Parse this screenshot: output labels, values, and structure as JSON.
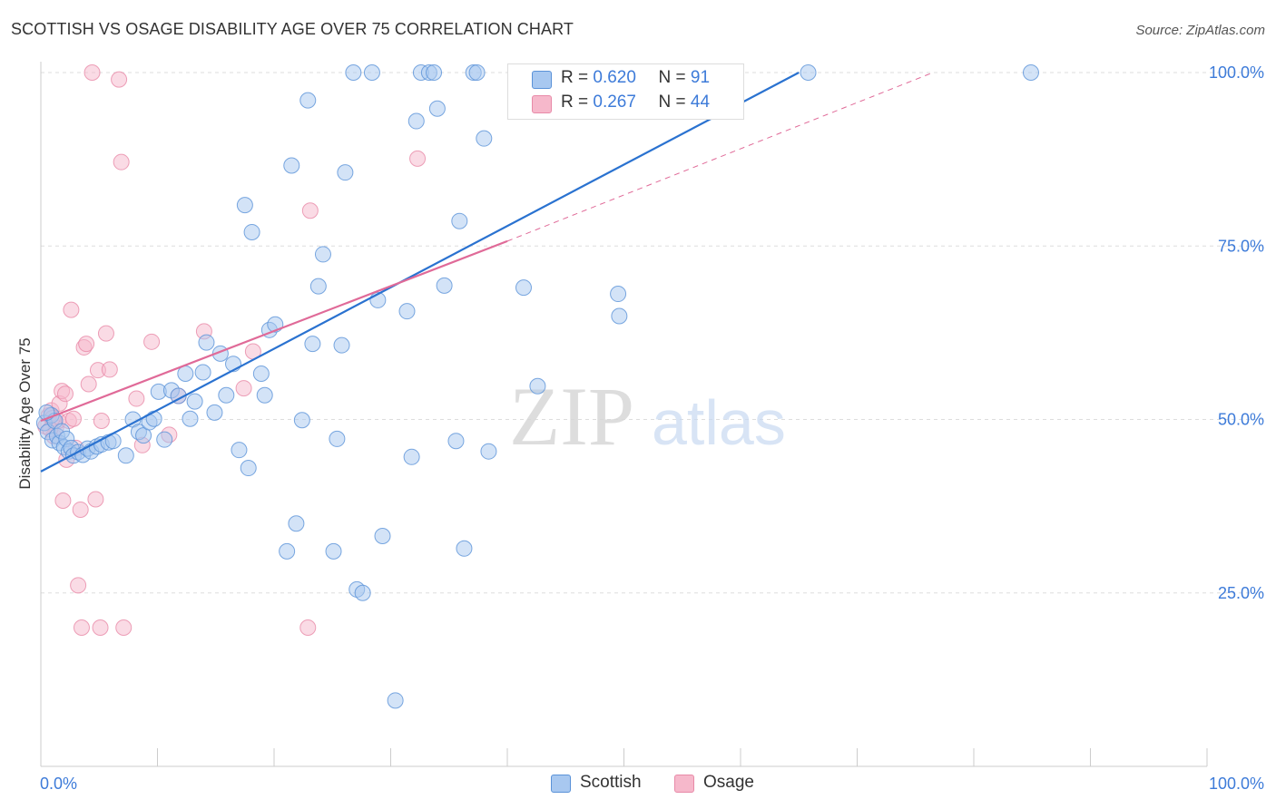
{
  "header": {
    "title": "SCOTTISH VS OSAGE DISABILITY AGE OVER 75 CORRELATION CHART",
    "source": "Source: ZipAtlas.com"
  },
  "watermark": {
    "zip": "ZIP",
    "atlas": "atlas"
  },
  "legend": {
    "scottish": {
      "r_label": "R =",
      "r_value": "0.620",
      "n_label": "N =",
      "n_value": "91"
    },
    "osage": {
      "r_label": "R =",
      "r_value": "0.267",
      "n_label": "N =",
      "n_value": "44"
    }
  },
  "bottom_legend": {
    "scottish": "Scottish",
    "osage": "Osage"
  },
  "colors": {
    "scottish_fill": "#a8c8f0",
    "scottish_stroke": "#5a92d8",
    "scottish_line": "#2a72d0",
    "osage_fill": "#f6b8cb",
    "osage_stroke": "#e88aa8",
    "osage_line": "#e06a98",
    "tick_label": "#3d7bd9",
    "grid": "#dddddd"
  },
  "chart_data": {
    "type": "scatter",
    "title": "SCOTTISH VS OSAGE DISABILITY AGE OVER 75 CORRELATION CHART",
    "xlabel": "",
    "ylabel": "Disability Age Over 75",
    "xlim": [
      0,
      100
    ],
    "ylim": [
      0,
      103
    ],
    "x_tick_labels": [
      {
        "value": 0,
        "label": "0.0%"
      },
      {
        "value": 100,
        "label": "100.0%"
      }
    ],
    "y_tick_labels": [
      {
        "value": 25,
        "label": "25.0%"
      },
      {
        "value": 50,
        "label": "50.0%"
      },
      {
        "value": 75,
        "label": "75.0%"
      },
      {
        "value": 100,
        "label": "100.0%"
      }
    ],
    "grid": true,
    "legend_position": "top-center",
    "series": [
      {
        "name": "Scottish",
        "points": [
          [
            0.3,
            49.5
          ],
          [
            0.6,
            48.2
          ],
          [
            0.9,
            50.6
          ],
          [
            1.0,
            47.0
          ],
          [
            1.2,
            49.8
          ],
          [
            1.4,
            47.6
          ],
          [
            1.6,
            46.6
          ],
          [
            1.8,
            48.3
          ],
          [
            2.0,
            46.0
          ],
          [
            2.2,
            47.2
          ],
          [
            2.4,
            45.4
          ],
          [
            2.6,
            45.9
          ],
          [
            2.8,
            44.8
          ],
          [
            3.2,
            45.3
          ],
          [
            3.6,
            44.9
          ],
          [
            4.0,
            45.8
          ],
          [
            4.3,
            45.4
          ],
          [
            4.8,
            46.1
          ],
          [
            5.2,
            46.4
          ],
          [
            5.8,
            46.7
          ],
          [
            6.2,
            46.9
          ],
          [
            7.3,
            44.8
          ],
          [
            7.9,
            50.0
          ],
          [
            8.4,
            48.2
          ],
          [
            8.8,
            47.7
          ],
          [
            9.3,
            49.6
          ],
          [
            9.7,
            50.1
          ],
          [
            10.1,
            54.0
          ],
          [
            10.6,
            47.1
          ],
          [
            11.2,
            54.2
          ],
          [
            11.8,
            53.4
          ],
          [
            12.4,
            56.6
          ],
          [
            12.8,
            50.1
          ],
          [
            13.2,
            52.6
          ],
          [
            13.9,
            56.8
          ],
          [
            14.2,
            61.1
          ],
          [
            14.9,
            51.0
          ],
          [
            15.4,
            59.5
          ],
          [
            15.9,
            53.5
          ],
          [
            16.5,
            58.0
          ],
          [
            17.0,
            45.6
          ],
          [
            17.5,
            80.9
          ],
          [
            17.8,
            43.0
          ],
          [
            18.1,
            77.0
          ],
          [
            18.9,
            56.6
          ],
          [
            19.2,
            53.5
          ],
          [
            19.6,
            62.9
          ],
          [
            20.1,
            63.7
          ],
          [
            21.1,
            31.0
          ],
          [
            21.5,
            86.6
          ],
          [
            21.9,
            35.0
          ],
          [
            22.4,
            49.9
          ],
          [
            22.9,
            96.0
          ],
          [
            23.3,
            60.9
          ],
          [
            23.8,
            69.2
          ],
          [
            24.2,
            73.8
          ],
          [
            25.1,
            31.0
          ],
          [
            25.4,
            47.2
          ],
          [
            25.8,
            60.7
          ],
          [
            26.1,
            85.6
          ],
          [
            26.8,
            100.0
          ],
          [
            27.1,
            25.5
          ],
          [
            27.6,
            25.0
          ],
          [
            28.4,
            100.0
          ],
          [
            28.9,
            67.2
          ],
          [
            29.3,
            33.2
          ],
          [
            30.4,
            9.5
          ],
          [
            31.4,
            65.6
          ],
          [
            31.8,
            44.6
          ],
          [
            32.2,
            93.0
          ],
          [
            32.6,
            100.0
          ],
          [
            33.3,
            100.0
          ],
          [
            33.7,
            100.0
          ],
          [
            34.0,
            94.8
          ],
          [
            34.6,
            69.3
          ],
          [
            35.6,
            46.9
          ],
          [
            35.9,
            78.6
          ],
          [
            36.3,
            31.4
          ],
          [
            37.1,
            100.0
          ],
          [
            37.4,
            100.0
          ],
          [
            38.0,
            90.5
          ],
          [
            38.4,
            45.4
          ],
          [
            41.4,
            69.0
          ],
          [
            42.6,
            54.8
          ],
          [
            46.8,
            100.0
          ],
          [
            49.5,
            68.1
          ],
          [
            49.6,
            64.9
          ],
          [
            59.6,
            100.0
          ],
          [
            65.8,
            100.0
          ],
          [
            84.9,
            100.0
          ],
          [
            0.5,
            51.0
          ]
        ]
      },
      {
        "name": "Osage",
        "points": [
          [
            0.4,
            49.0
          ],
          [
            0.7,
            50.6
          ],
          [
            0.9,
            51.3
          ],
          [
            1.1,
            47.6
          ],
          [
            1.3,
            48.8
          ],
          [
            1.5,
            49.8
          ],
          [
            1.6,
            52.3
          ],
          [
            1.8,
            54.1
          ],
          [
            1.9,
            38.3
          ],
          [
            2.1,
            53.7
          ],
          [
            2.2,
            44.2
          ],
          [
            2.4,
            49.8
          ],
          [
            2.6,
            65.8
          ],
          [
            2.8,
            50.1
          ],
          [
            3.0,
            45.9
          ],
          [
            3.2,
            26.1
          ],
          [
            3.4,
            37.0
          ],
          [
            3.5,
            20.0
          ],
          [
            3.7,
            60.4
          ],
          [
            3.9,
            60.9
          ],
          [
            4.1,
            55.1
          ],
          [
            4.4,
            100.0
          ],
          [
            4.7,
            38.5
          ],
          [
            4.9,
            57.1
          ],
          [
            5.1,
            20.0
          ],
          [
            5.2,
            49.8
          ],
          [
            5.6,
            62.4
          ],
          [
            5.9,
            57.2
          ],
          [
            6.7,
            99.0
          ],
          [
            6.9,
            87.1
          ],
          [
            7.1,
            20.0
          ],
          [
            8.2,
            53.0
          ],
          [
            8.7,
            46.3
          ],
          [
            9.5,
            61.2
          ],
          [
            11.0,
            47.8
          ],
          [
            11.8,
            53.4
          ],
          [
            14.0,
            62.7
          ],
          [
            17.4,
            54.5
          ],
          [
            18.2,
            59.8
          ],
          [
            22.9,
            20.0
          ],
          [
            23.1,
            80.1
          ],
          [
            32.3,
            87.6
          ],
          [
            1.0,
            50.2
          ],
          [
            0.8,
            48.6
          ]
        ]
      }
    ],
    "trendlines": [
      {
        "series": "Scottish",
        "x": [
          0,
          65
        ],
        "y": [
          42.5,
          100.0
        ],
        "style": "solid"
      },
      {
        "series": "Osage",
        "x": [
          0,
          40
        ],
        "y": [
          49.8,
          75.7
        ],
        "style": "solid"
      },
      {
        "series": "Osage",
        "x": [
          40,
          76.5
        ],
        "y": [
          75.7,
          100.0
        ],
        "style": "dashed"
      }
    ]
  }
}
